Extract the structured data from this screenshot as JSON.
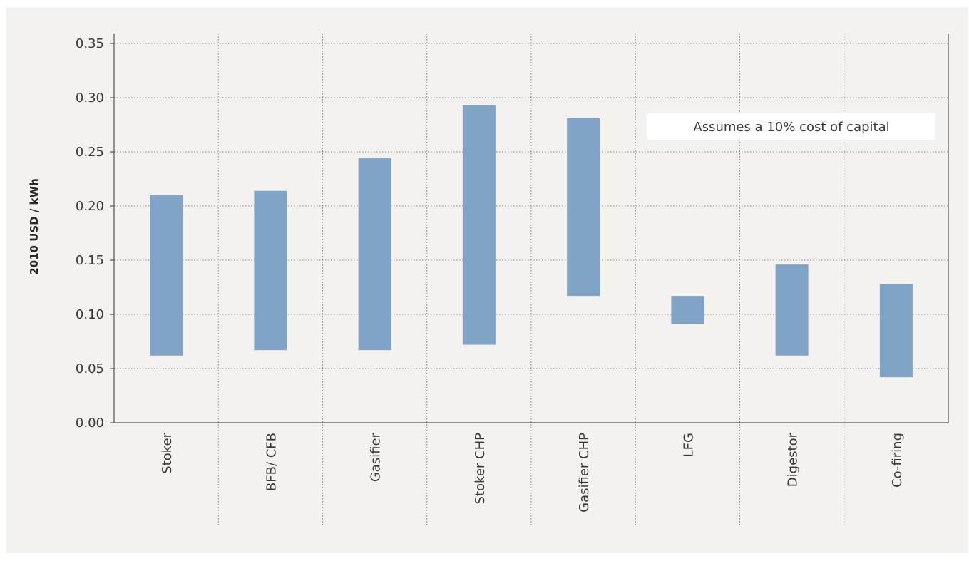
{
  "chart_data": {
    "type": "bar",
    "subtype": "floating-range",
    "title": "",
    "xlabel": "",
    "ylabel": "2010 USD / kWh",
    "ylim": [
      0,
      0.35
    ],
    "yticks": [
      "0.00",
      "0.05",
      "0.10",
      "0.15",
      "0.20",
      "0.25",
      "0.30",
      "0.35"
    ],
    "categories": [
      "Stoker",
      "BFB/ CFB",
      "Gasifier",
      "Stoker CHP",
      "Gasifier CHP",
      "LFG",
      "Digestor",
      "Co-firing"
    ],
    "series": [
      {
        "low": [
          0.062,
          0.067,
          0.067,
          0.072,
          0.117,
          0.091,
          0.062,
          0.042
        ],
        "high": [
          0.21,
          0.214,
          0.244,
          0.293,
          0.281,
          0.117,
          0.146,
          0.128
        ]
      }
    ],
    "bar_color": "#7fa4c7",
    "grid": true,
    "annotation": "Assumes a 10% cost of capital"
  }
}
